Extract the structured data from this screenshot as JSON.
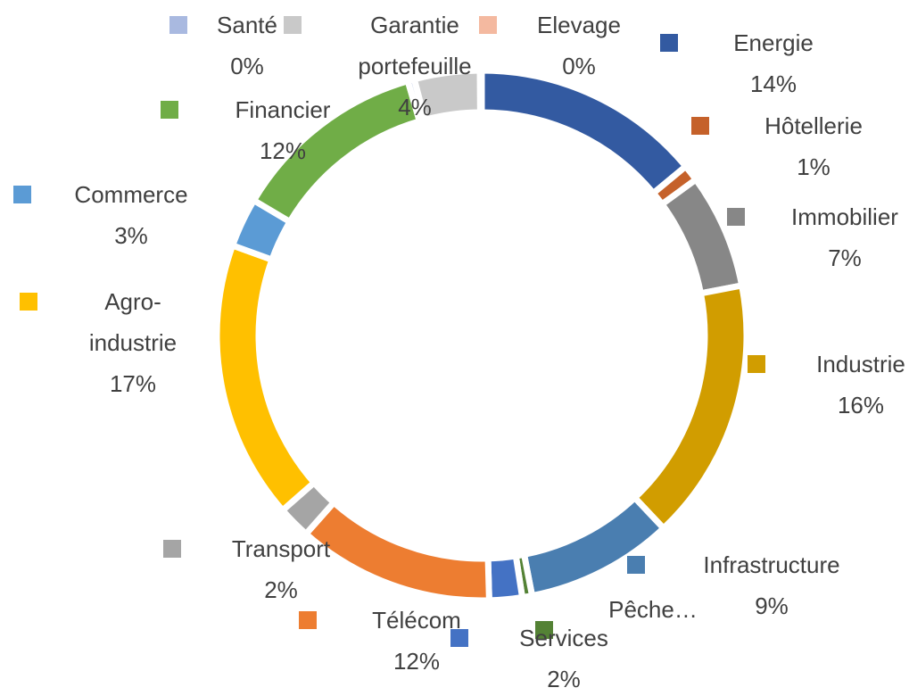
{
  "chart_data": {
    "type": "donut",
    "categories": [
      "Energie",
      "Hôtellerie",
      "Immobilier",
      "Industrie",
      "Infrastructure",
      "Pêche…",
      "Services",
      "Télécom",
      "Transport",
      "Agro-industrie",
      "Commerce",
      "Financier",
      "Santé",
      "Garantie portefeuille",
      "Elevage"
    ],
    "values": [
      14,
      1,
      7,
      16,
      9,
      0.6,
      2,
      12,
      2,
      17,
      3,
      12,
      0.4,
      4,
      0.1
    ],
    "value_labels": [
      "14%",
      "1%",
      "7%",
      "16%",
      "9%",
      null,
      "2%",
      "12%",
      "2%",
      "17%",
      "3%",
      "12%",
      "0%",
      "4%",
      "0%"
    ],
    "colors": [
      "#335aa1",
      "#c5612a",
      "#878787",
      "#d19d00",
      "#4a7eb0",
      "#548235",
      "#4472c4",
      "#ed7d31",
      "#a5a5a5",
      "#ffc000",
      "#5b9bd5",
      "#70ad47",
      "#a9b9e0",
      "#c9c9c9",
      "#f4b9a0"
    ]
  }
}
